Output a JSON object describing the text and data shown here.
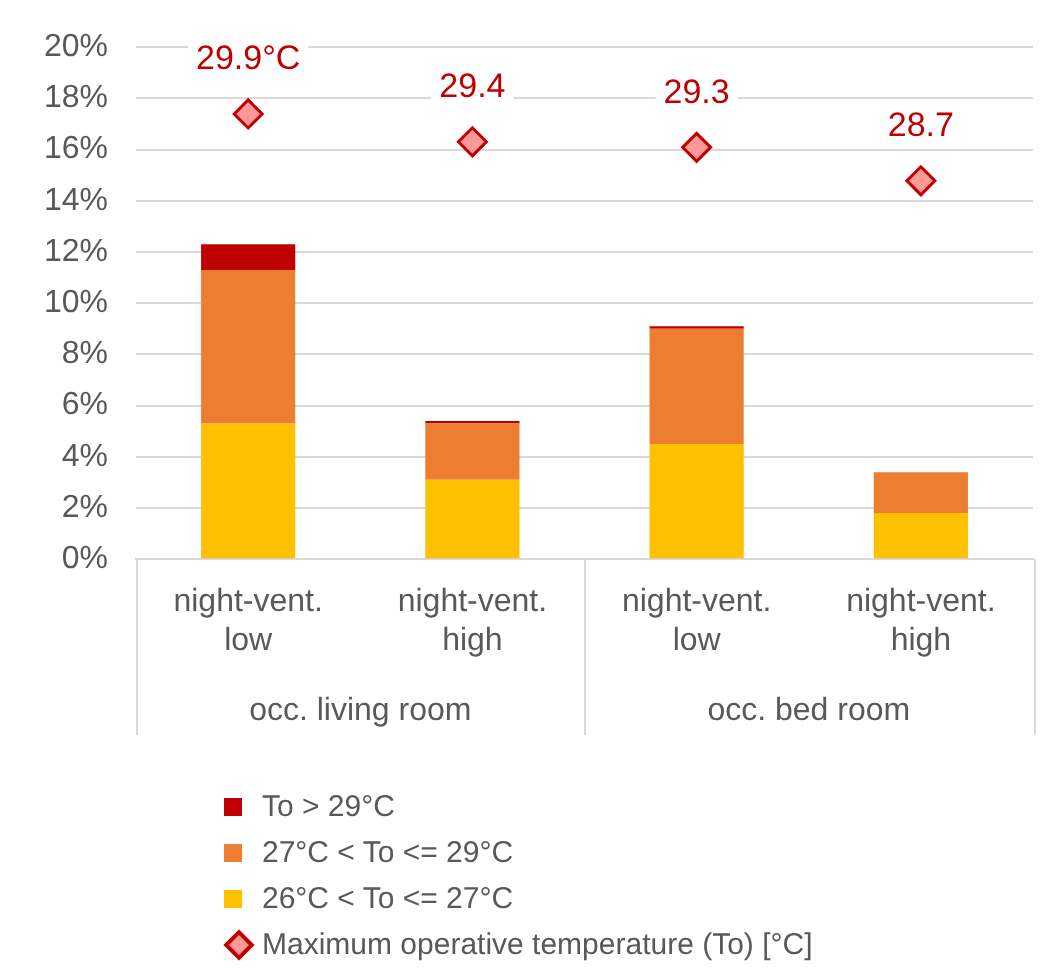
{
  "chart_data": {
    "type": "bar",
    "stacked": true,
    "categories": [
      "night-vent.\nlow",
      "night-vent.\nhigh",
      "night-vent.\nlow",
      "night-vent.\nhigh"
    ],
    "series": [
      {
        "name": "26°C < To <= 27°C",
        "color": "#ffc000",
        "values": [
          5.3,
          3.1,
          4.5,
          1.8
        ]
      },
      {
        "name": "27°C < To <= 29°C",
        "color": "#ed7d31",
        "values": [
          6.0,
          2.2,
          4.5,
          1.6
        ]
      },
      {
        "name": "To > 29°C",
        "color": "#c00000",
        "values": [
          1.0,
          0.1,
          0.1,
          0
        ]
      },
      {
        "name": "Maximum operative temperature (To) [°C]",
        "type": "scatter",
        "marker": "diamond",
        "color": "#c00000",
        "axis": "y2",
        "values": [
          29.9,
          29.4,
          29.3,
          28.7
        ],
        "value_labels": [
          "29.9°C",
          "29.4",
          "29.3",
          "28.7"
        ]
      }
    ],
    "ylim": [
      0,
      20
    ],
    "yticks": [
      {
        "value": 0,
        "label": "0%"
      },
      {
        "value": 2,
        "label": "2%"
      },
      {
        "value": 4,
        "label": "4%"
      },
      {
        "value": 6,
        "label": "6%"
      },
      {
        "value": 8,
        "label": "8%"
      },
      {
        "value": 10,
        "label": "10%"
      },
      {
        "value": 12,
        "label": "12%"
      },
      {
        "value": 14,
        "label": "14%"
      },
      {
        "value": 16,
        "label": "16%"
      },
      {
        "value": 18,
        "label": "18%"
      },
      {
        "value": 20,
        "label": "20%"
      }
    ],
    "y2lim": [
      21.9,
      31.1
    ],
    "grid": "y",
    "legend": "bottom",
    "annotations": [
      "occ. living room",
      "occ. bed room"
    ]
  }
}
